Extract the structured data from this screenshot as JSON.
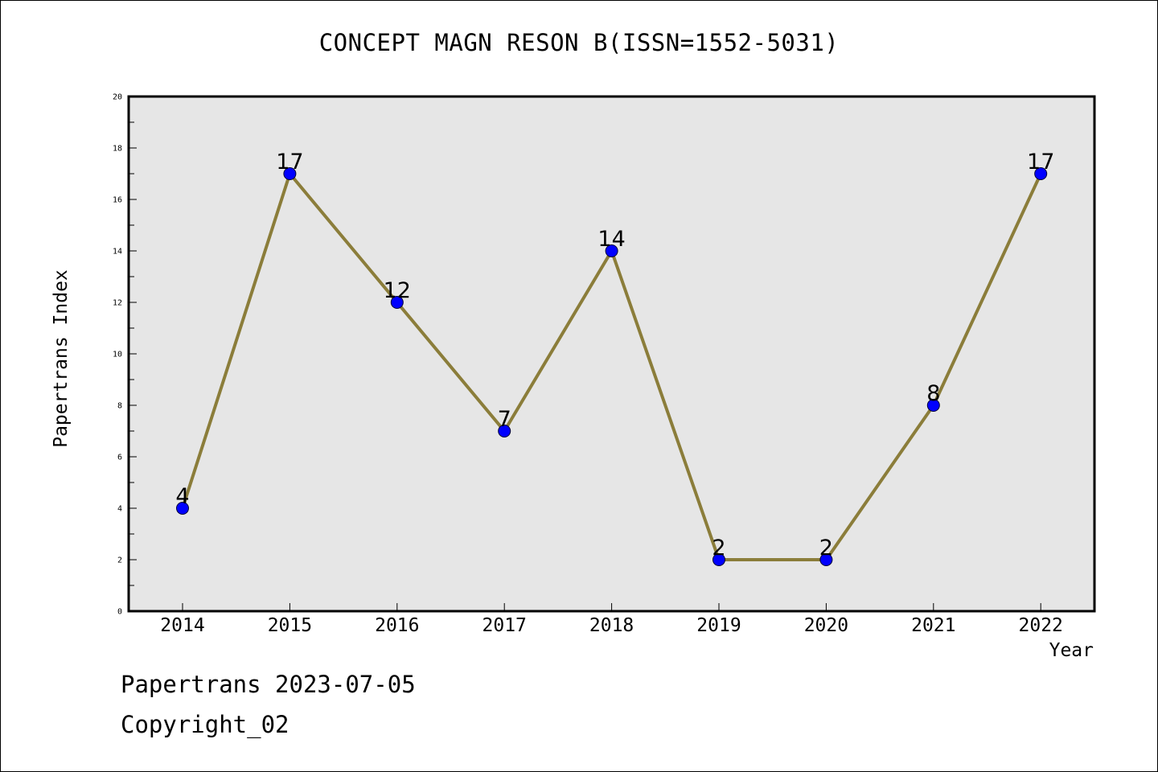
{
  "chart_data": {
    "type": "line",
    "title": "CONCEPT MAGN RESON B(ISSN=1552-5031)",
    "xlabel": "Year",
    "ylabel": "Papertrans Index",
    "categories": [
      "2014",
      "2015",
      "2016",
      "2017",
      "2018",
      "2019",
      "2020",
      "2021",
      "2022"
    ],
    "values": [
      4,
      17,
      12,
      7,
      14,
      2,
      2,
      8,
      17
    ],
    "ylim": [
      0,
      20
    ],
    "yticks": [
      "0",
      "2",
      "4",
      "6",
      "8",
      "10",
      "12",
      "14",
      "16",
      "18",
      "20"
    ],
    "grid": false,
    "legend": "none",
    "colors": {
      "line": "#8b7d3a",
      "marker": "#0000ff",
      "plot_background": "#e6e6e6"
    }
  },
  "footer": {
    "date_text": "Papertrans 2023-07-05",
    "copyright_text": "Copyright_02"
  }
}
